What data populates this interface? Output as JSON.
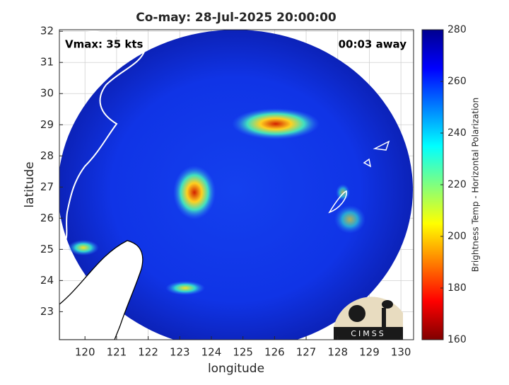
{
  "chart_data": {
    "type": "map",
    "title": "Co-may: 28-Jul-2025 20:00:00",
    "annotations": [
      "Vmax: 35 kts",
      "00:03 away"
    ],
    "x_label": "longitude",
    "y_label": "latitude",
    "xlim": [
      119.19,
      130.4
    ],
    "ylim": [
      22.1,
      32.05
    ],
    "xticks": [
      120,
      121,
      122,
      123,
      124,
      125,
      126,
      127,
      128,
      129,
      130
    ],
    "yticks": [
      23,
      24,
      25,
      26,
      27,
      28,
      29,
      30,
      31,
      32
    ],
    "grid": true,
    "colorbar": {
      "label": "Brightness Temp - Horizontal Polarization",
      "lim": [
        160,
        280
      ],
      "ticks": [
        160,
        180,
        200,
        220,
        240,
        260,
        280
      ]
    },
    "logo": "CIMSS"
  }
}
